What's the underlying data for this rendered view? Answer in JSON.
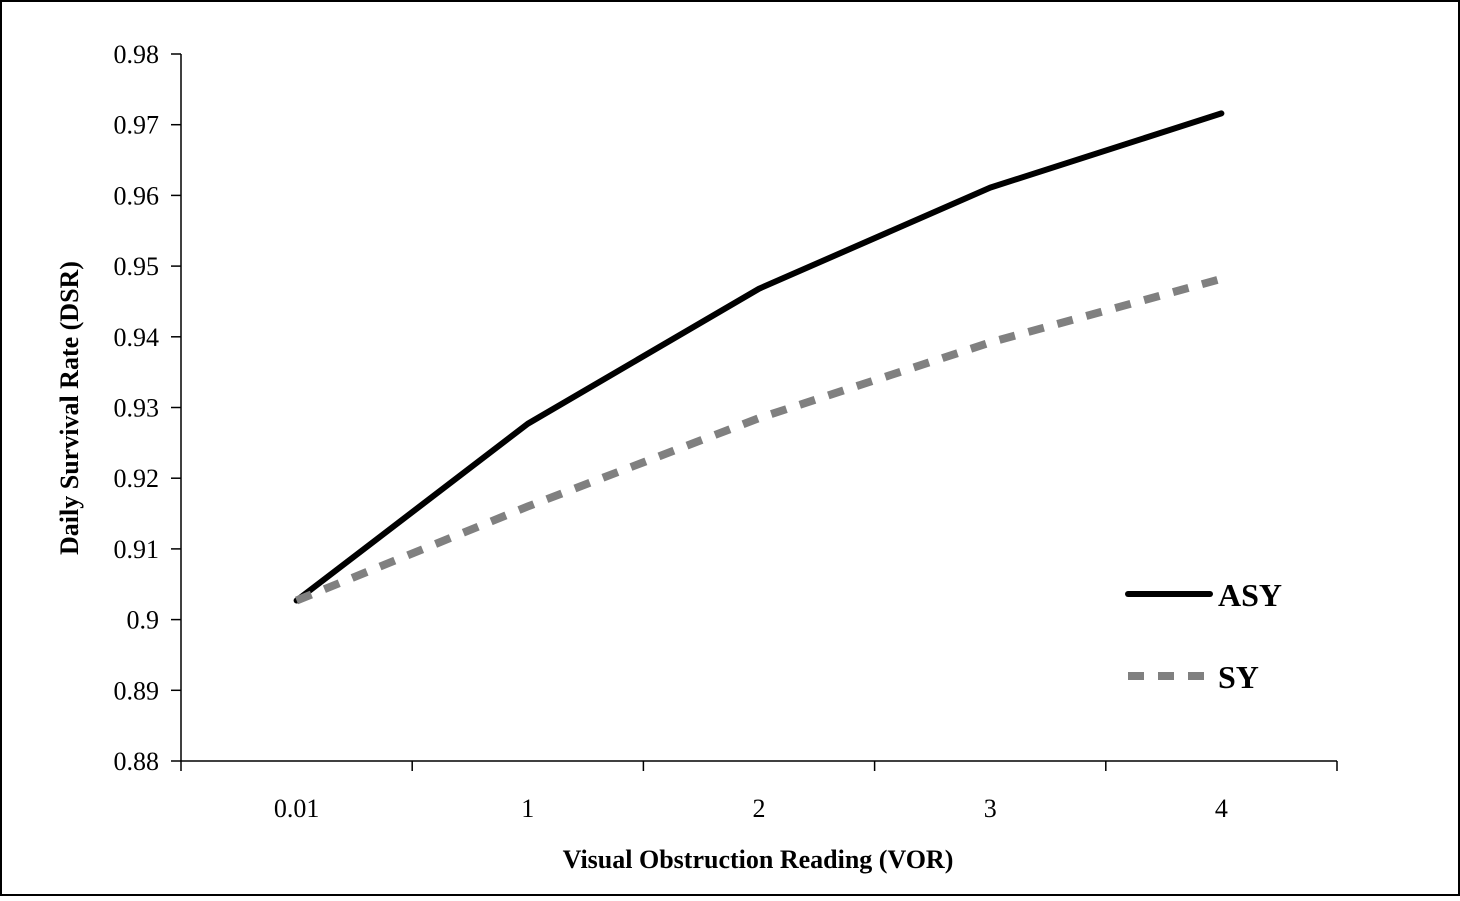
{
  "chart_data": {
    "type": "line",
    "title": "",
    "xlabel": "Visual Obstruction Reading (VOR)",
    "ylabel": "Daily Survival Rate (DSR)",
    "categories": [
      "0.01",
      "1",
      "2",
      "3",
      "4"
    ],
    "ylim": [
      0.88,
      0.98
    ],
    "yticks": [
      "0.88",
      "0.89",
      "0.9",
      "0.91",
      "0.92",
      "0.93",
      "0.94",
      "0.95",
      "0.96",
      "0.97",
      "0.98"
    ],
    "grid": false,
    "legend_position": "right",
    "series": [
      {
        "name": "ASY",
        "values": [
          0.9027,
          0.9277,
          0.9468,
          0.9611,
          0.9716
        ],
        "color": "#000000",
        "style": "solid"
      },
      {
        "name": "SY",
        "values": [
          0.9027,
          0.916,
          0.9285,
          0.9392,
          0.9482
        ],
        "color": "#808080",
        "style": "dashed"
      }
    ]
  }
}
